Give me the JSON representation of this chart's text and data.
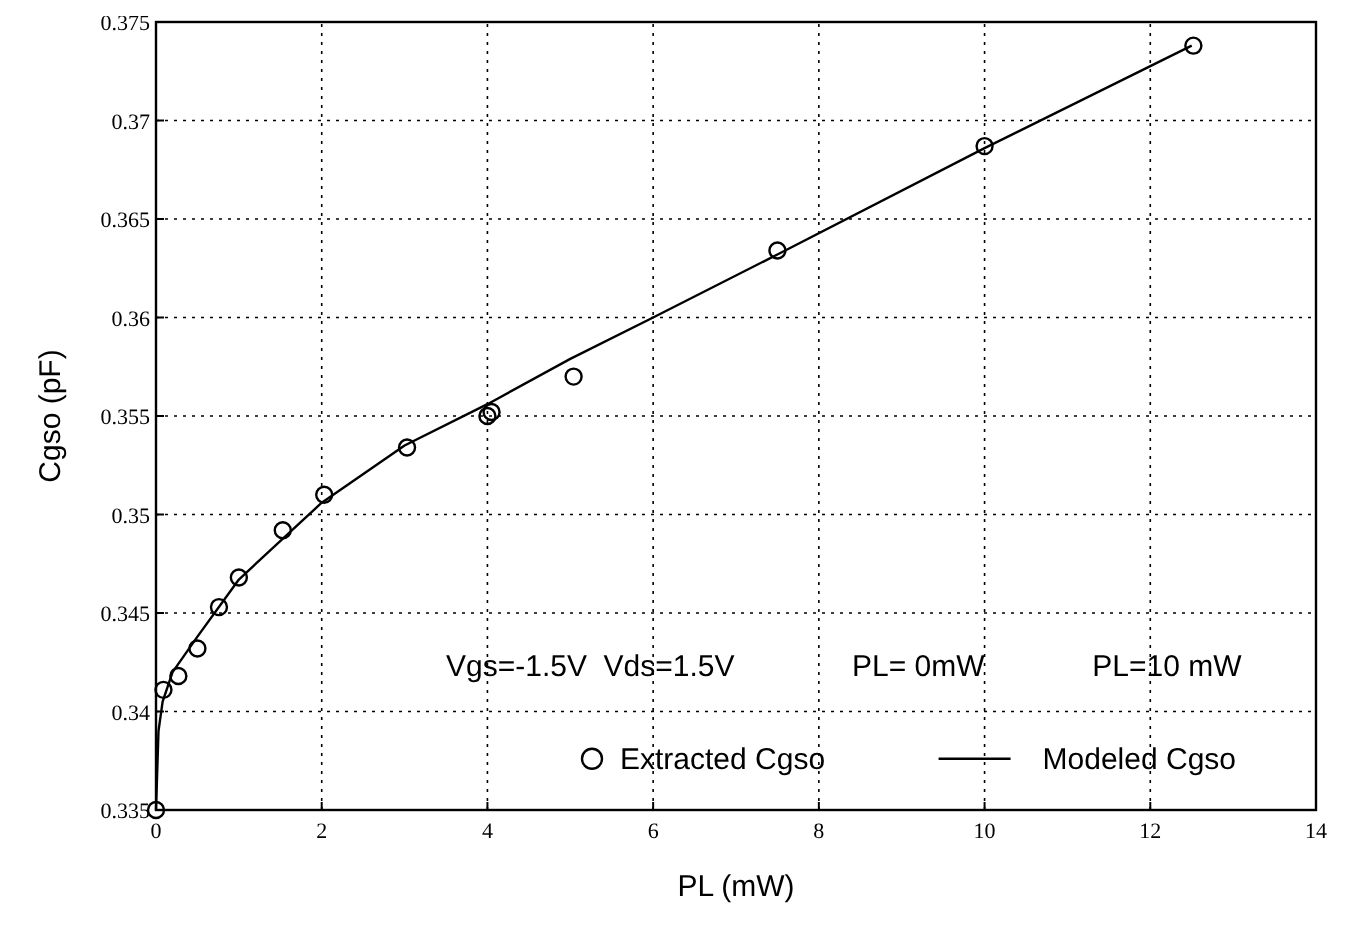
{
  "chart_data": {
    "type": "scatter",
    "xlabel": "PL (mW)",
    "ylabel": "Cgso (pF)",
    "xlim": [
      0,
      14
    ],
    "ylim": [
      0.335,
      0.375
    ],
    "xticks": [
      0,
      2,
      4,
      6,
      8,
      10,
      12,
      14
    ],
    "yticks": [
      0.335,
      0.34,
      0.345,
      0.35,
      0.355,
      0.36,
      0.365,
      0.37,
      0.375
    ],
    "grid": true,
    "legend": "bottom",
    "annotations": [
      "Vgs=-1.5V  Vds=1.5V",
      "PL= 0mW",
      "PL=10 mW"
    ],
    "series": [
      {
        "name": "Extracted Cgso",
        "marker": "circle",
        "color": "#000000",
        "x": [
          0,
          0.09,
          0.27,
          0.5,
          0.76,
          1.0,
          1.53,
          2.03,
          3.03,
          4.0,
          4.05,
          5.04,
          7.5,
          10.0,
          12.52
        ],
        "values": [
          0.335,
          0.3411,
          0.3418,
          0.3432,
          0.3453,
          0.3468,
          0.3492,
          0.351,
          0.3534,
          0.355,
          0.3552,
          0.357,
          0.3634,
          0.3687,
          0.3738
        ]
      },
      {
        "name": "Modeled Cgso",
        "type": "line",
        "marker": "none",
        "line_style": "solid",
        "color": "#000000",
        "x": [
          0,
          0.03,
          0.08,
          0.2,
          0.5,
          1,
          2,
          3,
          4,
          5,
          6,
          7.5,
          10,
          12.5
        ],
        "values": [
          0.335,
          0.339,
          0.3405,
          0.342,
          0.3438,
          0.3467,
          0.3506,
          0.3535,
          0.3556,
          0.3579,
          0.36,
          0.3632,
          0.3686,
          0.3738
        ]
      }
    ]
  }
}
